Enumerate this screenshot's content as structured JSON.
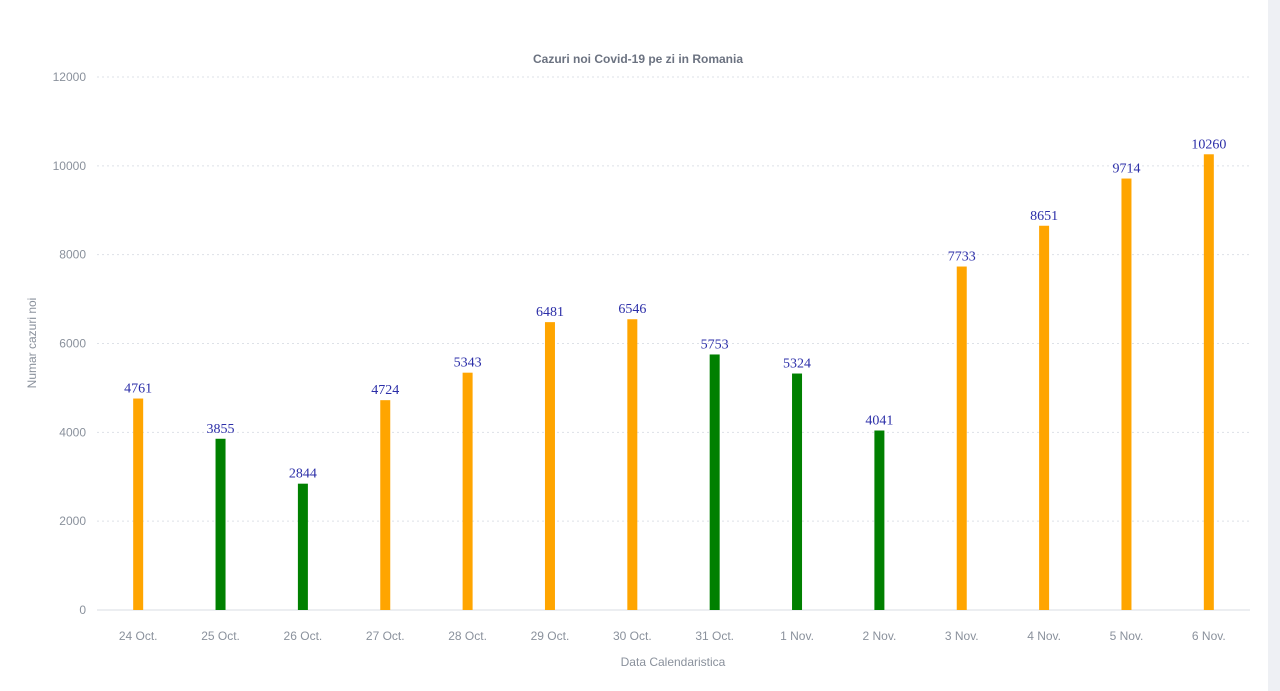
{
  "chart_data": {
    "type": "bar",
    "title": "Cazuri noi Covid-19 pe zi in Romania",
    "xlabel": "Data Calendaristica",
    "ylabel": "Numar cazuri noi",
    "ylim": [
      0,
      12000
    ],
    "yticks": [
      0,
      2000,
      4000,
      6000,
      8000,
      10000,
      12000
    ],
    "grid": true,
    "categories": [
      "24 Oct.",
      "25 Oct.",
      "26 Oct.",
      "27 Oct.",
      "28 Oct.",
      "29 Oct.",
      "30 Oct.",
      "31 Oct.",
      "1 Nov.",
      "2 Nov.",
      "3 Nov.",
      "4 Nov.",
      "5 Nov.",
      "6 Nov."
    ],
    "values": [
      4761,
      3855,
      2844,
      4724,
      5343,
      6481,
      6546,
      5753,
      5324,
      4041,
      7733,
      8651,
      9714,
      10260
    ],
    "bar_colors": [
      "#ffa500",
      "#008000",
      "#008000",
      "#ffa500",
      "#ffa500",
      "#ffa500",
      "#ffa500",
      "#008000",
      "#008000",
      "#008000",
      "#ffa500",
      "#ffa500",
      "#ffa500",
      "#ffa500"
    ],
    "value_label_color": "#2b2ea8"
  }
}
